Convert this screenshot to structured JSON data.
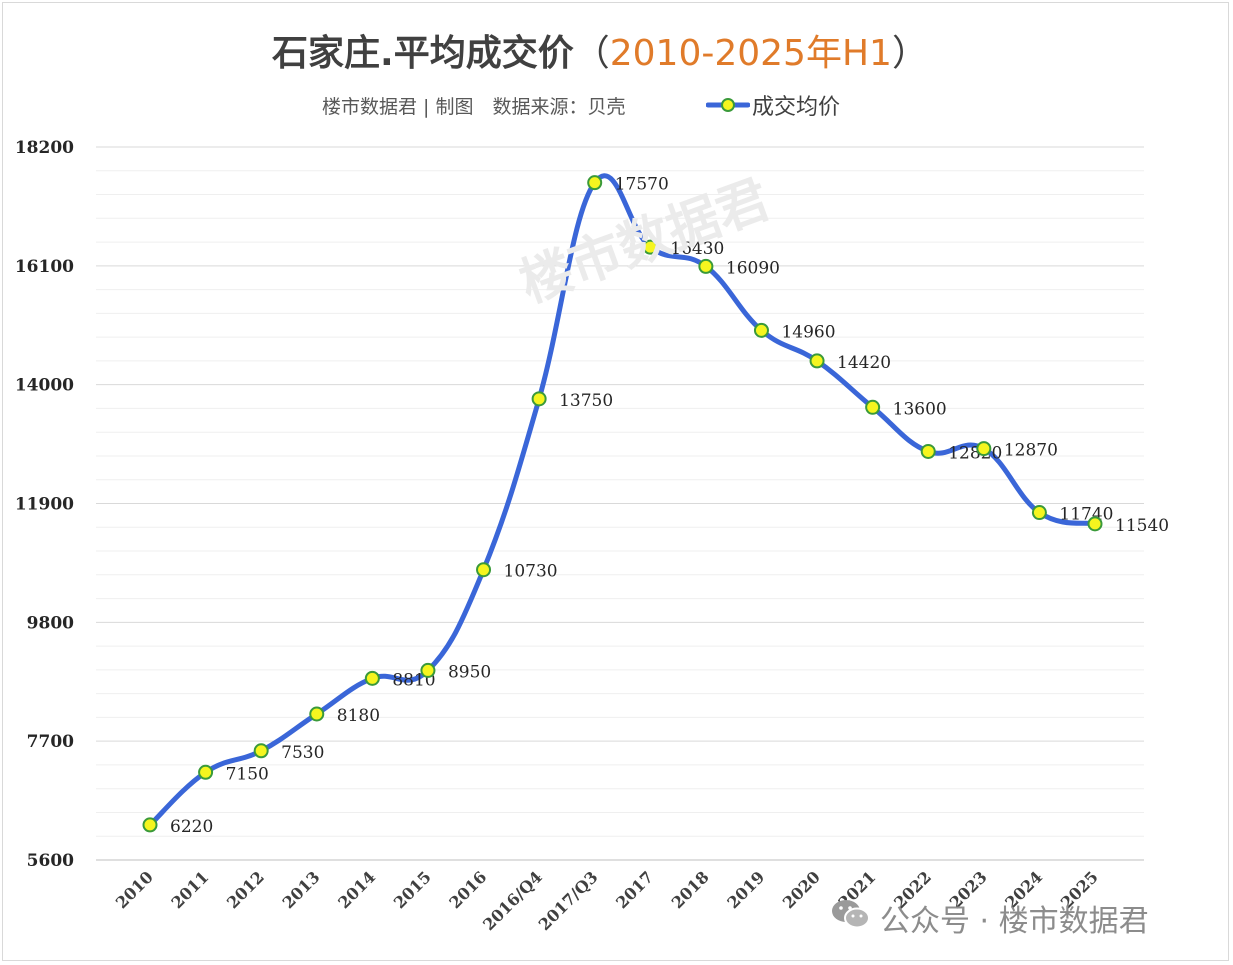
{
  "header": {
    "title_main": "石家庄.平均成交价",
    "title_open": "（",
    "title_accent": "2010-2025年H1",
    "title_close": "）",
    "accent_color": "#e07b2a",
    "subtitle": "楼市数据君 | 制图　数据来源：贝壳"
  },
  "legend": {
    "label": "成交均价"
  },
  "watermark": "楼市数据君",
  "brand": {
    "icon": "wechat-icon",
    "text": "公众号 · 楼市数据君"
  },
  "colors": {
    "line": "#3a66d8",
    "marker_fill": "#f5f51f",
    "marker_stroke": "#3a9a3a",
    "grid": "#d9d9d9",
    "minor_grid": "#efefef"
  },
  "chart_data": {
    "type": "line",
    "title": "石家庄.平均成交价（2010-2025年H1）",
    "xlabel": "",
    "ylabel": "",
    "categories": [
      "2010",
      "2011",
      "2012",
      "2013",
      "2014",
      "2015",
      "2016",
      "2016/Q4",
      "2017/Q3",
      "2017",
      "2018",
      "2019",
      "2020",
      "2021",
      "2022",
      "2023",
      "2024",
      "2025"
    ],
    "series": [
      {
        "name": "成交均价",
        "values": [
          6220,
          7150,
          7530,
          8180,
          8810,
          8950,
          10730,
          13750,
          17570,
          16430,
          16090,
          14960,
          14420,
          13600,
          12820,
          12870,
          11740,
          11540
        ]
      }
    ],
    "ylim": [
      5600,
      18200
    ],
    "yticks": [
      5600,
      7700,
      9800,
      11900,
      14000,
      16100,
      18200
    ],
    "grid": true,
    "legend_position": "top-right",
    "smooth": true
  }
}
